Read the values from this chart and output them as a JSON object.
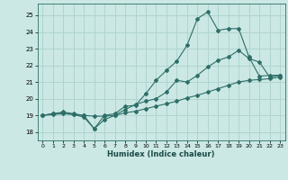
{
  "xlabel": "Humidex (Indice chaleur)",
  "bg_color": "#cbe8e4",
  "grid_color": "#b0d4d0",
  "line_color": "#2e6e68",
  "xlim": [
    -0.5,
    23.5
  ],
  "ylim": [
    17.5,
    25.7
  ],
  "xticks": [
    0,
    1,
    2,
    3,
    4,
    5,
    6,
    7,
    8,
    9,
    10,
    11,
    12,
    13,
    14,
    15,
    16,
    17,
    18,
    19,
    20,
    21,
    22,
    23
  ],
  "yticks": [
    18,
    19,
    20,
    21,
    22,
    23,
    24,
    25
  ],
  "line1_x": [
    0,
    1,
    2,
    3,
    4,
    5,
    6,
    7,
    8,
    9,
    10,
    11,
    12,
    13,
    14,
    15,
    16,
    17,
    18,
    19,
    20,
    21,
    22,
    23
  ],
  "line1_y": [
    19.0,
    19.1,
    19.15,
    19.05,
    18.9,
    18.2,
    18.75,
    19.0,
    19.35,
    19.65,
    19.85,
    20.0,
    20.4,
    21.1,
    21.0,
    21.4,
    21.9,
    22.3,
    22.5,
    22.9,
    22.4,
    22.2,
    21.3,
    21.4
  ],
  "line2_x": [
    0,
    1,
    2,
    3,
    4,
    5,
    6,
    7,
    8,
    9,
    10,
    11,
    12,
    13,
    14,
    15,
    16,
    17,
    18,
    19,
    20,
    21,
    22,
    23
  ],
  "line2_y": [
    19.0,
    19.1,
    19.2,
    19.1,
    19.0,
    18.2,
    19.0,
    19.1,
    19.55,
    19.6,
    20.3,
    21.1,
    21.7,
    22.25,
    23.2,
    24.8,
    25.2,
    24.1,
    24.2,
    24.2,
    22.5,
    21.35,
    21.4,
    21.4
  ],
  "line3_x": [
    0,
    1,
    2,
    3,
    4,
    5,
    6,
    7,
    8,
    9,
    10,
    11,
    12,
    13,
    14,
    15,
    16,
    17,
    18,
    19,
    20,
    21,
    22,
    23
  ],
  "line3_y": [
    19.0,
    19.05,
    19.1,
    19.05,
    19.0,
    18.95,
    18.95,
    19.0,
    19.15,
    19.25,
    19.4,
    19.55,
    19.7,
    19.85,
    20.05,
    20.2,
    20.4,
    20.6,
    20.8,
    21.0,
    21.1,
    21.15,
    21.2,
    21.3
  ]
}
